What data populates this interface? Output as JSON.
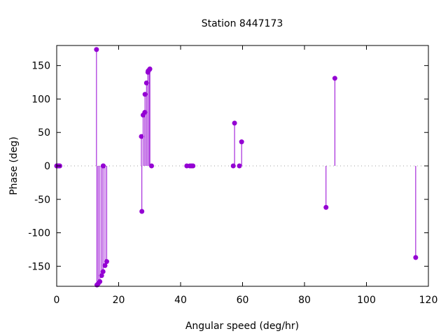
{
  "chart_data": {
    "type": "scatter",
    "style": "impulses-with-points",
    "title": "Station 8447173",
    "xlabel": "Angular speed (deg/hr)",
    "ylabel": "Phase (deg)",
    "xlim": [
      0,
      120
    ],
    "ylim": [
      -180,
      180
    ],
    "xticks": [
      0,
      20,
      40,
      60,
      80,
      100,
      120
    ],
    "yticks": [
      -150,
      -100,
      -50,
      0,
      50,
      100,
      150
    ],
    "grid": false,
    "zero_line": true,
    "legend": "none",
    "color": "#9400d3",
    "series": [
      {
        "points": [
          {
            "x": 0.0,
            "y": 0
          },
          {
            "x": 0.04,
            "y": 0
          },
          {
            "x": 0.08,
            "y": 0
          },
          {
            "x": 0.5,
            "y": 0
          },
          {
            "x": 0.55,
            "y": 0
          },
          {
            "x": 1.0,
            "y": 0
          },
          {
            "x": 12.85,
            "y": 174
          },
          {
            "x": 13.0,
            "y": -178
          },
          {
            "x": 13.4,
            "y": -176
          },
          {
            "x": 13.94,
            "y": -173
          },
          {
            "x": 14.5,
            "y": -164
          },
          {
            "x": 14.96,
            "y": -158
          },
          {
            "x": 15.0,
            "y": 0
          },
          {
            "x": 15.04,
            "y": 0
          },
          {
            "x": 15.59,
            "y": -149
          },
          {
            "x": 16.14,
            "y": -143
          },
          {
            "x": 27.34,
            "y": 44
          },
          {
            "x": 27.5,
            "y": -68
          },
          {
            "x": 27.9,
            "y": 76
          },
          {
            "x": 28.44,
            "y": 80
          },
          {
            "x": 28.51,
            "y": 107
          },
          {
            "x": 28.99,
            "y": 124
          },
          {
            "x": 29.46,
            "y": 140
          },
          {
            "x": 29.53,
            "y": 142
          },
          {
            "x": 29.96,
            "y": 144
          },
          {
            "x": 30.08,
            "y": 145
          },
          {
            "x": 30.62,
            "y": 0
          },
          {
            "x": 42.0,
            "y": 0
          },
          {
            "x": 43.0,
            "y": 0
          },
          {
            "x": 43.5,
            "y": 0
          },
          {
            "x": 44.0,
            "y": 0
          },
          {
            "x": 57.0,
            "y": 0
          },
          {
            "x": 57.42,
            "y": 64
          },
          {
            "x": 58.98,
            "y": 0
          },
          {
            "x": 59.7,
            "y": 36
          },
          {
            "x": 86.95,
            "y": -62
          },
          {
            "x": 89.8,
            "y": 131
          },
          {
            "x": 115.9,
            "y": -137
          }
        ]
      }
    ]
  }
}
